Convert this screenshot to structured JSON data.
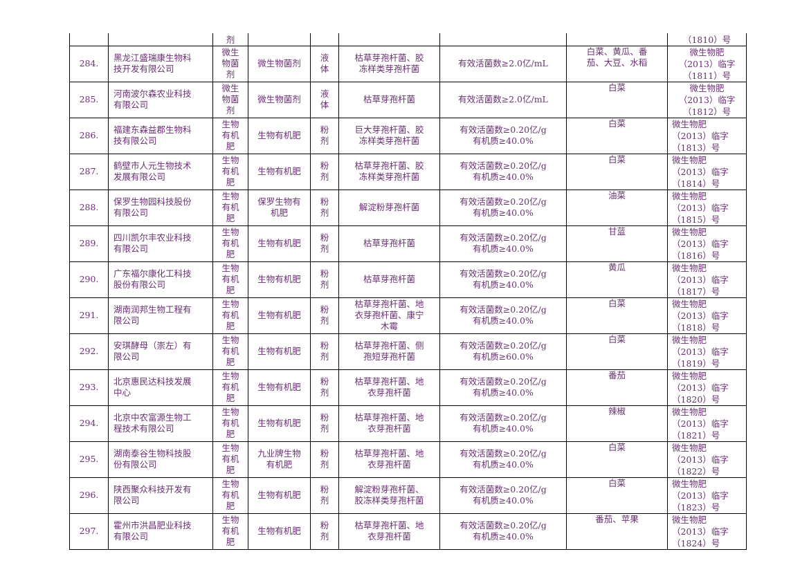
{
  "carry_over": {
    "type": "剂",
    "registration": "（1810）号"
  },
  "rows": [
    {
      "num": "284.",
      "company": "黑龙江盛瑞康生物科\n技开发有限公司",
      "type": "微生\n物菌\n剂",
      "product": "微生物菌剂",
      "form": "液\n体",
      "strains": "枯草芽孢杆菌、胶\n冻样类芽孢杆菌",
      "indicators": "有效活菌数≥2.0亿/mL",
      "crops": "白菜、黄瓜、番\n茄、大豆、水稻",
      "registration": "微生物肥\n（2013）临字\n（1811）号"
    },
    {
      "num": "285.",
      "company": "河南波尔森农业科技\n有限公司",
      "type": "微生\n物菌\n剂",
      "product": "微生物菌剂",
      "form": "液\n体",
      "strains": "枯草芽孢杆菌",
      "indicators": "有效活菌数≥2.0亿/mL",
      "crops": "白菜",
      "registration": "微生物肥\n（2013）临字\n（1812）号"
    },
    {
      "num": "286.",
      "company": "福建东森益郡生物科\n技有限公司",
      "type": "生物\n有机\n肥",
      "product": "生物有机肥",
      "form": "粉\n剂",
      "strains": "巨大芽孢杆菌、胶\n冻样类芽孢杆菌",
      "indicators": "有效活菌数≥0.20亿/g\n有机质≥40.0%",
      "crops": "白菜",
      "registration": "微生物肥\n（2013）临字\n（1813）号"
    },
    {
      "num": "287.",
      "company": "鹤壁市人元生物技术\n发展有限公司",
      "type": "生物\n有机\n肥",
      "product": "生物有机肥",
      "form": "粉\n剂",
      "strains": "枯草芽孢杆菌、胶\n冻样类芽孢杆菌",
      "indicators": "有效活菌数≥0.20亿/g\n有机质≥40.0%",
      "crops": "白菜",
      "registration": "微生物肥\n（2013）临字\n（1814）号"
    },
    {
      "num": "288.",
      "company": "保罗生物园科技股份\n有限公司",
      "type": "生物\n有机\n肥",
      "product": "保罗生物有\n机肥",
      "form": "粉\n剂",
      "strains": "解淀粉芽孢杆菌",
      "indicators": "有效活菌数≥0.20亿/g\n有机质≥40.0%",
      "crops": "油菜",
      "registration": "微生物肥\n（2013）临字\n（1815）号"
    },
    {
      "num": "289.",
      "company": "四川凯尔丰农业科技\n有限公司",
      "type": "生物\n有机\n肥",
      "product": "生物有机肥",
      "form": "粉\n剂",
      "strains": "枯草芽孢杆菌",
      "indicators": "有效活菌数≥0.20亿/g\n有机质≥40.0%",
      "crops": "甘蓝",
      "registration": "微生物肥\n（2013）临字\n（1816）号"
    },
    {
      "num": "290.",
      "company": "广东福尔康化工科技\n股份有限公司",
      "type": "生物\n有机\n肥",
      "product": "生物有机肥",
      "form": "粉\n剂",
      "strains": "枯草芽孢杆菌",
      "indicators": "有效活菌数≥0.20亿/g\n有机质≥40.0%",
      "crops": "黄瓜",
      "registration": "微生物肥\n（2013）临字\n（1817）号"
    },
    {
      "num": "291.",
      "company": "湖南润邦生物工程有\n限公司",
      "type": "生物\n有机\n肥",
      "product": "生物有机肥",
      "form": "粉\n剂",
      "strains": "枯草芽孢杆菌、地\n衣芽孢杆菌、康宁\n木霉",
      "indicators": "有效活菌数≥0.20亿/g\n有机质≥40.0%",
      "crops": "白菜",
      "registration": "微生物肥\n（2013）临字\n（1818）号"
    },
    {
      "num": "292.",
      "company": "安琪酵母（崇左）有\n限公司",
      "type": "生物\n有机\n肥",
      "product": "生物有机肥",
      "form": "粉\n剂",
      "strains": "枯草芽孢杆菌、侧\n孢短芽孢杆菌",
      "indicators": "有效活菌数≥0.20亿/g\n有机质≥60.0%",
      "crops": "白菜",
      "registration": "微生物肥\n（2013）临字\n（1819）号"
    },
    {
      "num": "293.",
      "company": "北京惠民达科技发展\n中心",
      "type": "生物\n有机\n肥",
      "product": "生物有机肥",
      "form": "粉\n剂",
      "strains": "枯草芽孢杆菌、地\n衣芽孢杆菌",
      "indicators": "有效活菌数≥0.20亿/g\n有机质≥40.0%",
      "crops": "番茄",
      "registration": "微生物肥\n（2013）临字\n（1820）号"
    },
    {
      "num": "294.",
      "company": "北京中农富源生物工\n程技术有限公司",
      "type": "生物\n有机\n肥",
      "product": "生物有机肥",
      "form": "粉\n剂",
      "strains": "枯草芽孢杆菌、地\n衣芽孢杆菌",
      "indicators": "有效活菌数≥0.20亿/g\n有机质≥40.0%",
      "crops": "辣椒",
      "registration": "微生物肥\n（2013）临字\n（1821）号"
    },
    {
      "num": "295.",
      "company": "湖南泰谷生物科技股\n份有限公司",
      "type": "生物\n有机\n肥",
      "product": "九业牌生物\n有机肥",
      "form": "粉\n剂",
      "strains": "枯草芽孢杆菌、地\n衣芽孢杆菌",
      "indicators": "有效活菌数≥0.20亿/g\n有机质≥40.0%",
      "crops": "白菜",
      "registration": "微生物肥\n（2013）临字\n（1822）号"
    },
    {
      "num": "296.",
      "company": "陕西聚众科技开发有\n限公司",
      "type": "生物\n有机\n肥",
      "product": "生物有机肥",
      "form": "粉\n剂",
      "strains": "解淀粉芽孢杆菌、\n胶冻样类芽孢杆菌",
      "indicators": "有效活菌数≥0.20亿/g\n有机质≥40.0%",
      "crops": "白菜",
      "registration": "微生物肥\n（2013）临字\n（1823）号"
    },
    {
      "num": "297.",
      "company": "霍州市洪昌肥业科技\n有限公司",
      "type": "生物\n有机\n肥",
      "product": "生物有机肥",
      "form": "粉\n剂",
      "strains": "枯草芽孢杆菌、地\n衣芽孢杆菌",
      "indicators": "有效活菌数≥0.20亿/g\n有机质≥40.0%",
      "crops": "番茄、苹果",
      "registration": "微生物肥\n（2013）临字\n（1824）号"
    }
  ]
}
